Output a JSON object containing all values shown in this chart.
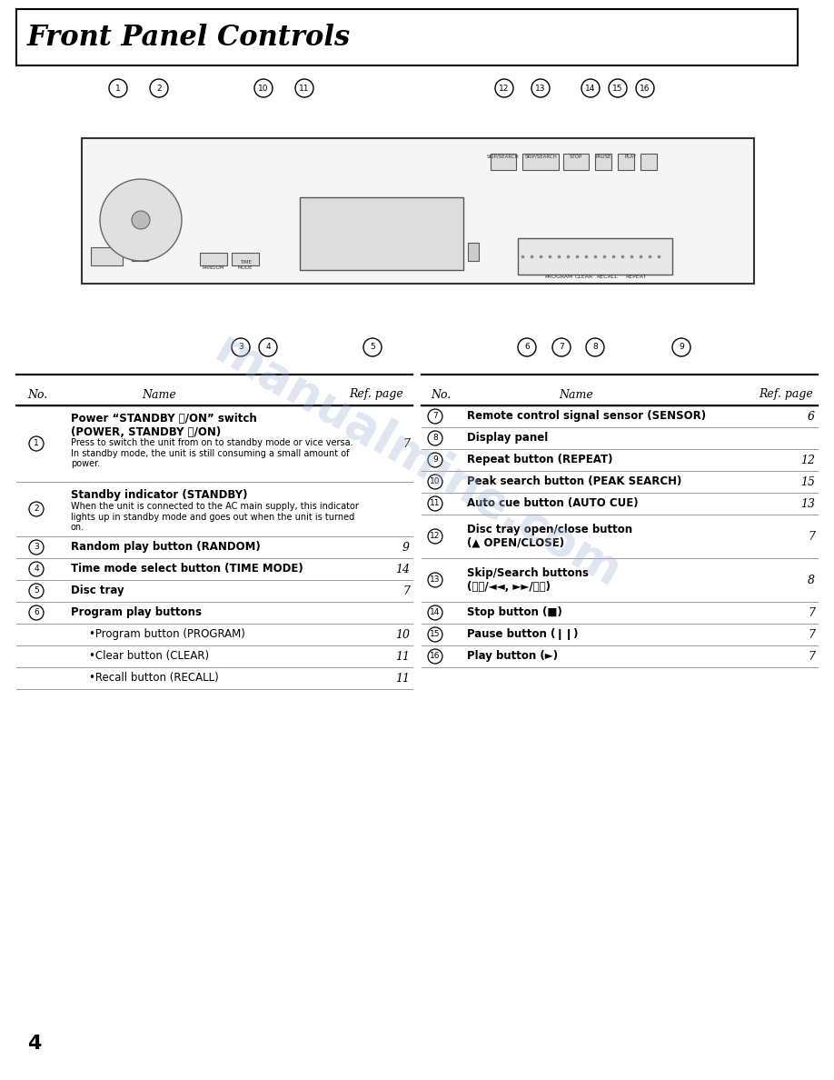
{
  "title": "Front Panel Controls",
  "page_number": "4",
  "bg_color": "#ffffff",
  "title_font_size": 22,
  "watermark_text": "manualmine.com",
  "watermark_color": "#a0b8d8",
  "watermark_alpha": 0.35,
  "table_header": [
    "No.",
    "Name",
    "Ref. page"
  ],
  "left_rows": [
    {
      "num": "1",
      "name": "Power “STANDBY ⏻/ON” switch\n(POWER, STANDBY ⏻/ON)",
      "ref": "7",
      "bold": true,
      "subtext": "Press to switch the unit from on to standby mode or vice versa.\nIn standby mode, the unit is still consuming a small amount of\npower."
    },
    {
      "num": "2",
      "name": "Standby indicator (STANDBY)",
      "ref": "",
      "bold": true,
      "subtext": "When the unit is connected to the AC main supply, this indicator\nlights up in standby mode and goes out when the unit is turned\non."
    },
    {
      "num": "3",
      "name": "Random play button (RANDOM)",
      "ref": "9",
      "bold": true,
      "subtext": ""
    },
    {
      "num": "4",
      "name": "Time mode select button (TIME MODE)",
      "ref": "14",
      "bold": true,
      "subtext": ""
    },
    {
      "num": "5",
      "name": "Disc tray",
      "ref": "7",
      "bold": true,
      "subtext": ""
    },
    {
      "num": "6",
      "name": "Program play buttons",
      "ref": "",
      "bold": true,
      "subtext": ""
    },
    {
      "num": "",
      "name": "•Program button (PROGRAM)",
      "ref": "10",
      "bold": false,
      "subtext": ""
    },
    {
      "num": "",
      "name": "•Clear button (CLEAR)",
      "ref": "11",
      "bold": false,
      "subtext": ""
    },
    {
      "num": "",
      "name": "•Recall button (RECALL)",
      "ref": "11",
      "bold": false,
      "subtext": ""
    }
  ],
  "right_rows": [
    {
      "num": "7",
      "name": "Remote control signal sensor (SENSOR)",
      "ref": "6",
      "bold": true,
      "subtext": ""
    },
    {
      "num": "8",
      "name": "Display panel",
      "ref": "",
      "bold": true,
      "subtext": ""
    },
    {
      "num": "9",
      "name": "Repeat button (REPEAT)",
      "ref": "12",
      "bold": true,
      "subtext": ""
    },
    {
      "num": "10",
      "name": "Peak search button (PEAK SEARCH)",
      "ref": "15",
      "bold": true,
      "subtext": ""
    },
    {
      "num": "11",
      "name": "Auto cue button (AUTO CUE)",
      "ref": "13",
      "bold": true,
      "subtext": ""
    },
    {
      "num": "12",
      "name": "Disc tray open/close button\n(▲ OPEN/CLOSE)",
      "ref": "7",
      "bold": true,
      "subtext": ""
    },
    {
      "num": "13",
      "name": "Skip/Search buttons\n(⧘⧙/◄◄, ►►/⧙⧘)",
      "ref": "8",
      "bold": true,
      "subtext": ""
    },
    {
      "num": "14",
      "name": "Stop button (■)",
      "ref": "7",
      "bold": true,
      "subtext": ""
    },
    {
      "num": "15",
      "name": "Pause button (❙❙)",
      "ref": "7",
      "bold": true,
      "subtext": ""
    },
    {
      "num": "16",
      "name": "Play button (►)",
      "ref": "7",
      "bold": true,
      "subtext": ""
    }
  ]
}
